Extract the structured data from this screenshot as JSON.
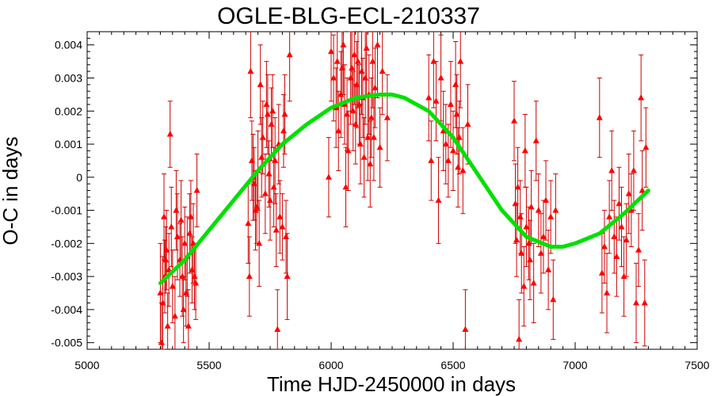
{
  "chart_data": {
    "type": "scatter",
    "title": "OGLE-BLG-ECL-210337",
    "xlabel": "Time HJD-2450000 in days",
    "ylabel": "O-C in days",
    "xlim": [
      5000,
      7500
    ],
    "ylim": [
      -0.0052,
      0.0044
    ],
    "xticks": [
      5000,
      5500,
      6000,
      6500,
      7000,
      7500
    ],
    "yticks": [
      0.004,
      0.003,
      0.002,
      0.001,
      0,
      -0.001,
      -0.002,
      -0.003,
      -0.004,
      -0.005
    ],
    "ytick_labels": [
      "0.004",
      "0.003",
      "0.002",
      "0.001",
      "0",
      "-0.001",
      "-0.002",
      "-0.003",
      "-0.004",
      "-0.005"
    ],
    "grid": false,
    "colors": {
      "points": "#ff0000",
      "errorbars": "#cc0000",
      "fit": "#00e000"
    },
    "series": [
      {
        "kind": "points_with_errors",
        "points": [
          {
            "x": 5300,
            "y": -0.0035,
            "err": 0.0015
          },
          {
            "x": 5305,
            "y": -0.005,
            "err": 0.0012
          },
          {
            "x": 5310,
            "y": -0.0038,
            "err": 0.0014
          },
          {
            "x": 5315,
            "y": -0.0012,
            "err": 0.0013
          },
          {
            "x": 5318,
            "y": -0.003,
            "err": 0.0011
          },
          {
            "x": 5322,
            "y": -0.0025,
            "err": 0.001
          },
          {
            "x": 5325,
            "y": -0.0022,
            "err": 0.0012
          },
          {
            "x": 5330,
            "y": -0.0045,
            "err": 0.001
          },
          {
            "x": 5335,
            "y": -0.0028,
            "err": 0.0011
          },
          {
            "x": 5340,
            "y": 0.0013,
            "err": 0.001
          },
          {
            "x": 5345,
            "y": -0.0015,
            "err": 0.0012
          },
          {
            "x": 5350,
            "y": -0.0033,
            "err": 0.0011
          },
          {
            "x": 5360,
            "y": -0.0042,
            "err": 0.0012
          },
          {
            "x": 5365,
            "y": -0.001,
            "err": 0.0012
          },
          {
            "x": 5370,
            "y": -0.0018,
            "err": 0.0013
          },
          {
            "x": 5380,
            "y": -0.0025,
            "err": 0.0011
          },
          {
            "x": 5385,
            "y": -0.0013,
            "err": 0.0012
          },
          {
            "x": 5390,
            "y": -0.003,
            "err": 0.0012
          },
          {
            "x": 5395,
            "y": -0.004,
            "err": 0.001
          },
          {
            "x": 5400,
            "y": -0.002,
            "err": 0.0011
          },
          {
            "x": 5405,
            "y": -0.0035,
            "err": 0.001
          },
          {
            "x": 5410,
            "y": -0.0024,
            "err": 0.0012
          },
          {
            "x": 5415,
            "y": -0.0045,
            "err": 0.0011
          },
          {
            "x": 5420,
            "y": -0.0017,
            "err": 0.0012
          },
          {
            "x": 5425,
            "y": -0.0012,
            "err": 0.0011
          },
          {
            "x": 5430,
            "y": -0.0028,
            "err": 0.001
          },
          {
            "x": 5435,
            "y": -0.002,
            "err": 0.0012
          },
          {
            "x": 5440,
            "y": -0.003,
            "err": 0.001
          },
          {
            "x": 5445,
            "y": -0.0032,
            "err": 0.0011
          },
          {
            "x": 5450,
            "y": -0.0004,
            "err": 0.0011
          },
          {
            "x": 5660,
            "y": -0.0014,
            "err": 0.0012
          },
          {
            "x": 5665,
            "y": -0.003,
            "err": 0.0012
          },
          {
            "x": 5670,
            "y": 0.0032,
            "err": 0.0014
          },
          {
            "x": 5675,
            "y": 0.0005,
            "err": 0.0012
          },
          {
            "x": 5680,
            "y": 0.0,
            "err": 0.0013
          },
          {
            "x": 5685,
            "y": -0.0002,
            "err": 0.0011
          },
          {
            "x": 5690,
            "y": -0.001,
            "err": 0.0012
          },
          {
            "x": 5695,
            "y": -0.0009,
            "err": 0.0011
          },
          {
            "x": 5700,
            "y": 0.0002,
            "err": 0.0012
          },
          {
            "x": 5705,
            "y": -0.002,
            "err": 0.0013
          },
          {
            "x": 5710,
            "y": 0.0028,
            "err": 0.0012
          },
          {
            "x": 5715,
            "y": 0.0006,
            "err": 0.0012
          },
          {
            "x": 5720,
            "y": 0.0012,
            "err": 0.0011
          },
          {
            "x": 5730,
            "y": -0.0005,
            "err": 0.0012
          },
          {
            "x": 5735,
            "y": 0.0022,
            "err": 0.0013
          },
          {
            "x": 5740,
            "y": 0.0019,
            "err": 0.0012
          },
          {
            "x": 5745,
            "y": 0.0001,
            "err": 0.001
          },
          {
            "x": 5750,
            "y": -0.0007,
            "err": 0.0012
          },
          {
            "x": 5755,
            "y": 0.0016,
            "err": 0.0011
          },
          {
            "x": 5760,
            "y": 0.002,
            "err": 0.0011
          },
          {
            "x": 5765,
            "y": -0.0003,
            "err": 0.0012
          },
          {
            "x": 5770,
            "y": 0.0005,
            "err": 0.0013
          },
          {
            "x": 5775,
            "y": -0.0016,
            "err": 0.0011
          },
          {
            "x": 5780,
            "y": -0.0046,
            "err": 0.0012
          },
          {
            "x": 5785,
            "y": 0.001,
            "err": 0.0012
          },
          {
            "x": 5790,
            "y": -0.0012,
            "err": 0.0011
          },
          {
            "x": 5800,
            "y": -0.0015,
            "err": 0.001
          },
          {
            "x": 5805,
            "y": 0.0014,
            "err": 0.0011
          },
          {
            "x": 5810,
            "y": 0.0019,
            "err": 0.0012
          },
          {
            "x": 5815,
            "y": -0.0018,
            "err": 0.0011
          },
          {
            "x": 5820,
            "y": -0.003,
            "err": 0.0013
          },
          {
            "x": 5830,
            "y": 0.0037,
            "err": 0.0014
          },
          {
            "x": 5990,
            "y": 0.0,
            "err": 0.0012
          },
          {
            "x": 6000,
            "y": 0.0038,
            "err": 0.0015
          },
          {
            "x": 6010,
            "y": 0.003,
            "err": 0.0013
          },
          {
            "x": 6020,
            "y": 0.0021,
            "err": 0.0012
          },
          {
            "x": 6025,
            "y": 0.0035,
            "err": 0.0014
          },
          {
            "x": 6030,
            "y": 0.0014,
            "err": 0.0012
          },
          {
            "x": 6040,
            "y": 0.0025,
            "err": 0.0013
          },
          {
            "x": 6045,
            "y": 0.0033,
            "err": 0.0011
          },
          {
            "x": 6050,
            "y": 0.004,
            "err": 0.0015
          },
          {
            "x": 6055,
            "y": 0.0022,
            "err": 0.0012
          },
          {
            "x": 6060,
            "y": -0.0003,
            "err": 0.0012
          },
          {
            "x": 6065,
            "y": 0.0019,
            "err": 0.0011
          },
          {
            "x": 6070,
            "y": 0.0008,
            "err": 0.0012
          },
          {
            "x": 6080,
            "y": 0.003,
            "err": 0.0014
          },
          {
            "x": 6085,
            "y": 0.0033,
            "err": 0.0013
          },
          {
            "x": 6090,
            "y": 0.002,
            "err": 0.0012
          },
          {
            "x": 6095,
            "y": 0.0037,
            "err": 0.0015
          },
          {
            "x": 6100,
            "y": 0.0016,
            "err": 0.0012
          },
          {
            "x": 6105,
            "y": 0.0028,
            "err": 0.0013
          },
          {
            "x": 6110,
            "y": 0.0035,
            "err": 0.0014
          },
          {
            "x": 6115,
            "y": 0.0022,
            "err": 0.0012
          },
          {
            "x": 6120,
            "y": 0.001,
            "err": 0.0012
          },
          {
            "x": 6125,
            "y": 0.0032,
            "err": 0.0013
          },
          {
            "x": 6130,
            "y": 0.0024,
            "err": 0.0012
          },
          {
            "x": 6135,
            "y": 0.0006,
            "err": 0.0012
          },
          {
            "x": 6140,
            "y": 0.003,
            "err": 0.0014
          },
          {
            "x": 6145,
            "y": 0.0039,
            "err": 0.0015
          },
          {
            "x": 6150,
            "y": 0.0012,
            "err": 0.0013
          },
          {
            "x": 6155,
            "y": 0.0025,
            "err": 0.0012
          },
          {
            "x": 6160,
            "y": 0.0004,
            "err": 0.0013
          },
          {
            "x": 6165,
            "y": 0.0018,
            "err": 0.0012
          },
          {
            "x": 6170,
            "y": 0.0035,
            "err": 0.0014
          },
          {
            "x": 6175,
            "y": 0.0012,
            "err": 0.0013
          },
          {
            "x": 6180,
            "y": 0.0027,
            "err": 0.0012
          },
          {
            "x": 6190,
            "y": 0.004,
            "err": 0.0016
          },
          {
            "x": 6200,
            "y": 0.0009,
            "err": 0.0012
          },
          {
            "x": 6210,
            "y": 0.0032,
            "err": 0.0013
          },
          {
            "x": 6230,
            "y": 0.0018,
            "err": 0.0013
          },
          {
            "x": 6400,
            "y": 0.0024,
            "err": 0.0013
          },
          {
            "x": 6410,
            "y": 0.0005,
            "err": 0.0012
          },
          {
            "x": 6420,
            "y": 0.0035,
            "err": 0.0014
          },
          {
            "x": 6430,
            "y": 0.0023,
            "err": 0.0012
          },
          {
            "x": 6440,
            "y": -0.0007,
            "err": 0.0013
          },
          {
            "x": 6450,
            "y": 0.003,
            "err": 0.0013
          },
          {
            "x": 6460,
            "y": 0.0014,
            "err": 0.0012
          },
          {
            "x": 6470,
            "y": 0.001,
            "err": 0.0012
          },
          {
            "x": 6480,
            "y": 0.0005,
            "err": 0.0011
          },
          {
            "x": 6490,
            "y": 0.0022,
            "err": 0.0013
          },
          {
            "x": 6500,
            "y": 0.0008,
            "err": 0.0012
          },
          {
            "x": 6510,
            "y": 0.0028,
            "err": 0.0013
          },
          {
            "x": 6515,
            "y": 0.0019,
            "err": 0.0012
          },
          {
            "x": 6520,
            "y": 0.0003,
            "err": 0.0012
          },
          {
            "x": 6525,
            "y": 0.0012,
            "err": 0.0011
          },
          {
            "x": 6530,
            "y": 0.0035,
            "err": 0.0014
          },
          {
            "x": 6540,
            "y": 0.0002,
            "err": 0.0013
          },
          {
            "x": 6550,
            "y": -0.0046,
            "err": 0.0012
          },
          {
            "x": 6560,
            "y": 0.0016,
            "err": 0.0012
          },
          {
            "x": 6750,
            "y": 0.0017,
            "err": 0.0012
          },
          {
            "x": 6755,
            "y": -0.0008,
            "err": 0.0012
          },
          {
            "x": 6760,
            "y": -0.0019,
            "err": 0.0011
          },
          {
            "x": 6765,
            "y": -0.0003,
            "err": 0.0012
          },
          {
            "x": 6770,
            "y": -0.0049,
            "err": 0.0012
          },
          {
            "x": 6775,
            "y": -0.0012,
            "err": 0.0011
          },
          {
            "x": 6780,
            "y": -0.0023,
            "err": 0.0012
          },
          {
            "x": 6790,
            "y": -0.0033,
            "err": 0.0012
          },
          {
            "x": 6795,
            "y": 0.0008,
            "err": 0.0011
          },
          {
            "x": 6800,
            "y": -0.0015,
            "err": 0.0012
          },
          {
            "x": 6810,
            "y": -0.002,
            "err": 0.0011
          },
          {
            "x": 6815,
            "y": -0.0025,
            "err": 0.0012
          },
          {
            "x": 6820,
            "y": -0.0009,
            "err": 0.0011
          },
          {
            "x": 6830,
            "y": -0.0032,
            "err": 0.0012
          },
          {
            "x": 6840,
            "y": 0.0011,
            "err": 0.0012
          },
          {
            "x": 6850,
            "y": -0.001,
            "err": 0.0011
          },
          {
            "x": 6860,
            "y": -0.0023,
            "err": 0.0012
          },
          {
            "x": 6870,
            "y": -0.0018,
            "err": 0.0011
          },
          {
            "x": 6880,
            "y": -0.0007,
            "err": 0.0012
          },
          {
            "x": 6890,
            "y": -0.0028,
            "err": 0.0012
          },
          {
            "x": 6900,
            "y": -0.0012,
            "err": 0.0011
          },
          {
            "x": 6910,
            "y": -0.0037,
            "err": 0.0012
          },
          {
            "x": 6920,
            "y": -0.001,
            "err": 0.0011
          },
          {
            "x": 7100,
            "y": 0.0018,
            "err": 0.0012
          },
          {
            "x": 7110,
            "y": -0.0029,
            "err": 0.0012
          },
          {
            "x": 7120,
            "y": -0.0021,
            "err": 0.0011
          },
          {
            "x": 7130,
            "y": -0.0035,
            "err": 0.0012
          },
          {
            "x": 7140,
            "y": -0.0012,
            "err": 0.0011
          },
          {
            "x": 7150,
            "y": 0.0002,
            "err": 0.0012
          },
          {
            "x": 7160,
            "y": -0.0018,
            "err": 0.0011
          },
          {
            "x": 7170,
            "y": -0.0024,
            "err": 0.0012
          },
          {
            "x": 7180,
            "y": -0.0008,
            "err": 0.0011
          },
          {
            "x": 7190,
            "y": -0.0015,
            "err": 0.0012
          },
          {
            "x": 7200,
            "y": -0.003,
            "err": 0.0012
          },
          {
            "x": 7210,
            "y": -0.0019,
            "err": 0.0011
          },
          {
            "x": 7220,
            "y": -0.0005,
            "err": 0.0012
          },
          {
            "x": 7230,
            "y": -0.001,
            "err": 0.0011
          },
          {
            "x": 7240,
            "y": 0.0002,
            "err": 0.0012
          },
          {
            "x": 7250,
            "y": -0.0038,
            "err": 0.0012
          },
          {
            "x": 7260,
            "y": -0.0022,
            "err": 0.0011
          },
          {
            "x": 7270,
            "y": 0.0024,
            "err": 0.0013
          },
          {
            "x": 7275,
            "y": -0.0004,
            "err": 0.0012
          },
          {
            "x": 7285,
            "y": -0.0038,
            "err": 0.0013
          },
          {
            "x": 7290,
            "y": 0.0009,
            "err": 0.0012
          }
        ]
      },
      {
        "kind": "fit_curve",
        "x": [
          5300,
          5400,
          5500,
          5600,
          5700,
          5800,
          5900,
          6000,
          6100,
          6200,
          6250,
          6300,
          6400,
          6500,
          6600,
          6700,
          6800,
          6900,
          6950,
          7000,
          7100,
          7200,
          7300
        ],
        "y": [
          -0.0032,
          -0.0025,
          -0.0016,
          -0.0007,
          0.0002,
          0.001,
          0.0016,
          0.0021,
          0.0024,
          0.0025,
          0.0025,
          0.0024,
          0.002,
          0.0012,
          0.0001,
          -0.001,
          -0.0018,
          -0.0021,
          -0.0021,
          -0.002,
          -0.0017,
          -0.0011,
          -0.0004
        ]
      }
    ]
  }
}
